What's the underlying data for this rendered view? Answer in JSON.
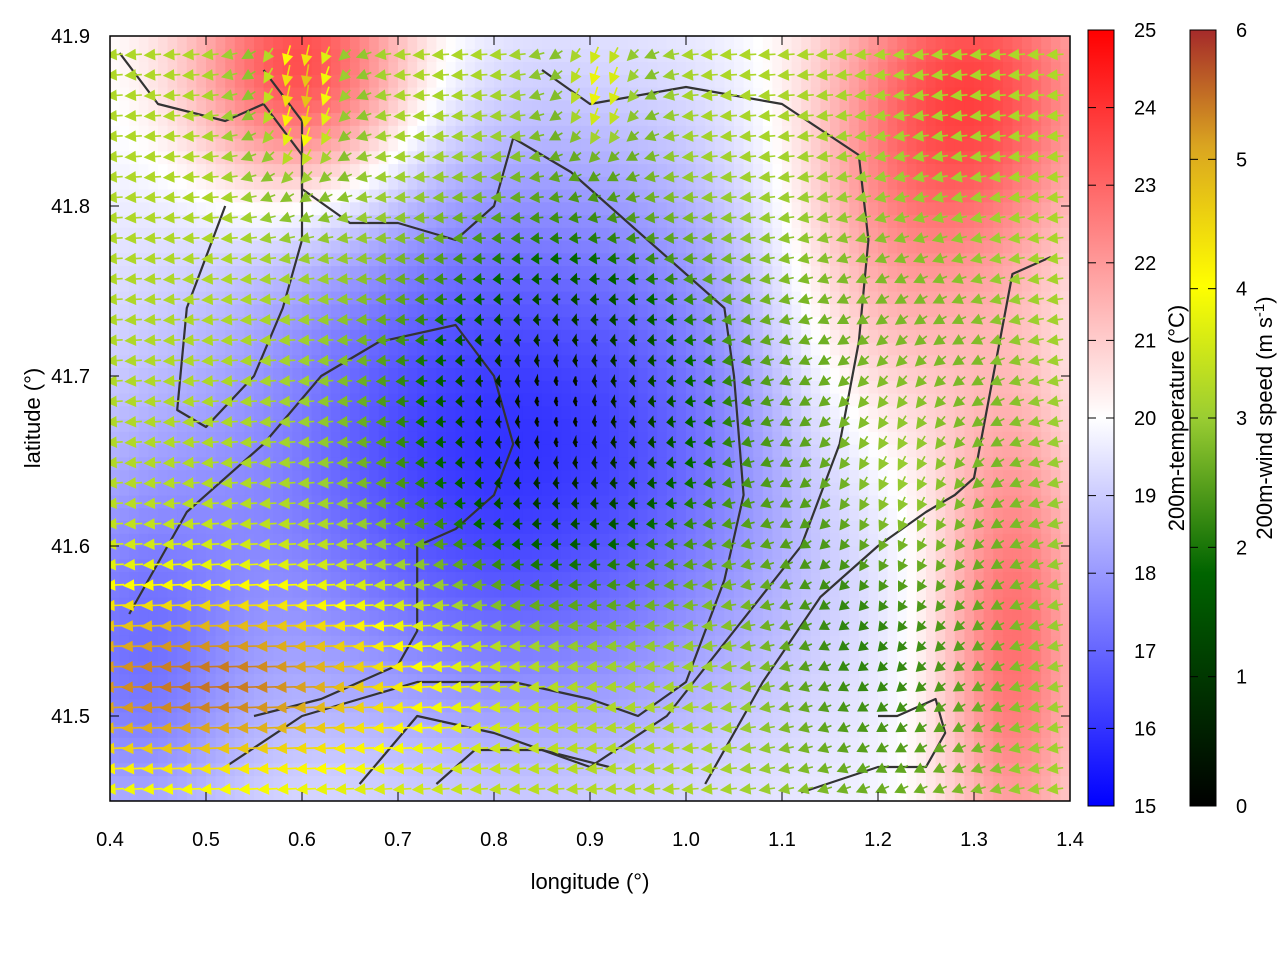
{
  "chart_data": {
    "type": "heatmap",
    "title": "",
    "xlabel": "longitude (°)",
    "ylabel": "latitude (°)",
    "xlim": [
      0.4,
      1.4
    ],
    "ylim": [
      41.45,
      41.9
    ],
    "x_ticks": [
      "0.4",
      "0.5",
      "0.6",
      "0.7",
      "0.8",
      "0.9",
      "1.0",
      "1.1",
      "1.2",
      "1.3",
      "1.4"
    ],
    "y_ticks": [
      "41.5",
      "41.6",
      "41.7",
      "41.8",
      "41.9"
    ],
    "overlay": "wind vectors colored by speed with terrain contour lines",
    "colorbar_temperature": {
      "label": "200m-temperature (°C)",
      "range": [
        15,
        25
      ],
      "ticks": [
        "15",
        "16",
        "17",
        "18",
        "19",
        "20",
        "21",
        "22",
        "23",
        "24",
        "25"
      ],
      "colors": [
        "#0000ff",
        "#ffffff",
        "#ff0000"
      ]
    },
    "colorbar_wind": {
      "label_main": "200m-wind speed (m s",
      "label_sup": "-1",
      "label_end": ")",
      "range": [
        0,
        6
      ],
      "ticks": [
        "0",
        "1",
        "2",
        "3",
        "4",
        "5",
        "6"
      ],
      "colors": [
        "#000000",
        "#006400",
        "#9acd32",
        "#ffff00",
        "#daa520",
        "#a52a2a"
      ]
    },
    "cold_core": {
      "lon": 0.87,
      "lat": 41.68,
      "temperature": 16
    },
    "warm_regions": [
      {
        "lon": 0.6,
        "lat": 41.87,
        "temperature": 23
      },
      {
        "lon": 1.3,
        "lat": 41.85,
        "temperature": 22.5
      },
      {
        "lon": 1.35,
        "lat": 41.55,
        "temperature": 22
      }
    ],
    "wind_direction_general": "westward (from east), converging toward cold core"
  }
}
